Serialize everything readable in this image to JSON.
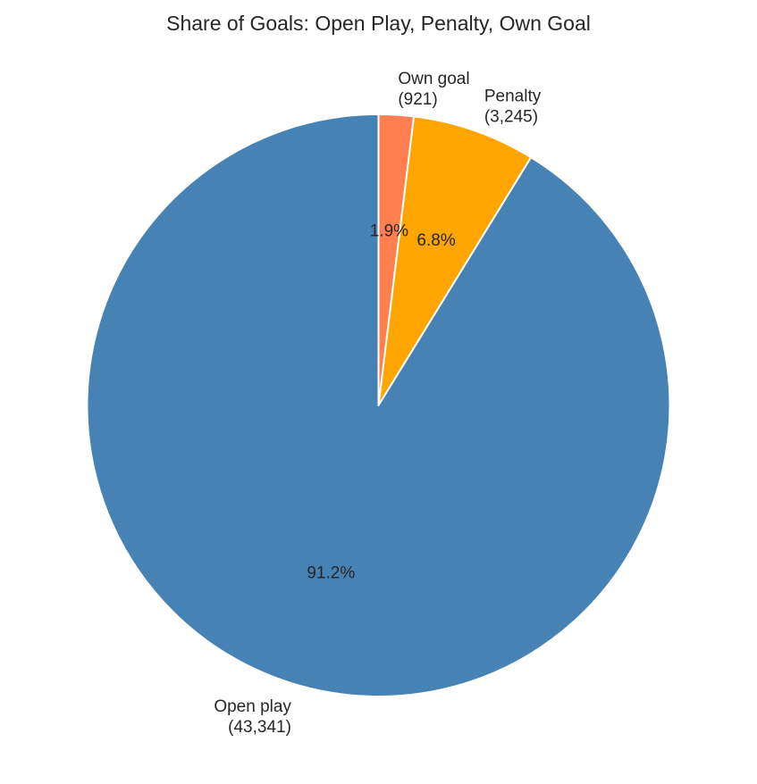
{
  "chart_data": {
    "type": "pie",
    "title": "Share of Goals: Open Play, Penalty, Own Goal",
    "slices": [
      {
        "category": "Own goal",
        "count_label": "(921)",
        "value": 921,
        "pct_label": "1.9%",
        "color": "#FF7F50"
      },
      {
        "category": "Penalty",
        "count_label": "(3,245)",
        "value": 3245,
        "pct_label": "6.8%",
        "color": "#FFA500"
      },
      {
        "category": "Open play",
        "count_label": "(43,341)",
        "value": 43341,
        "pct_label": "91.2%",
        "color": "#4682B4"
      }
    ],
    "start_angle": "top",
    "direction": "clockwise",
    "legend": "none"
  }
}
